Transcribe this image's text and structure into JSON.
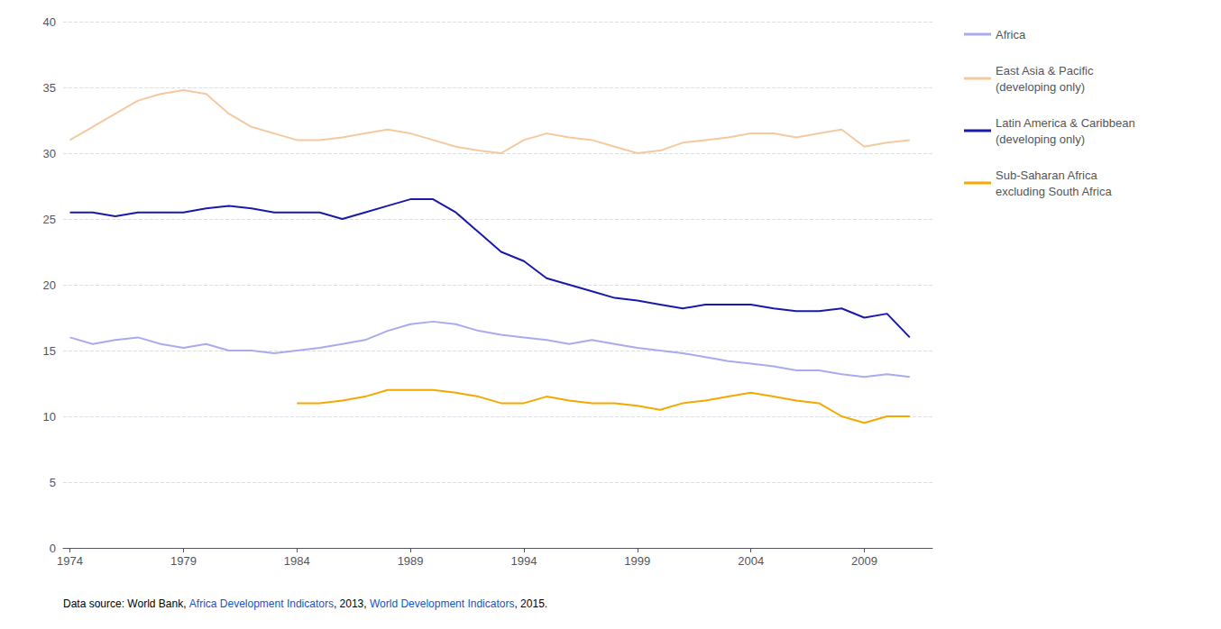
{
  "chart_data": {
    "type": "line",
    "x": [
      1974,
      1975,
      1976,
      1977,
      1978,
      1979,
      1980,
      1981,
      1982,
      1983,
      1984,
      1985,
      1986,
      1987,
      1988,
      1989,
      1990,
      1991,
      1992,
      1993,
      1994,
      1995,
      1996,
      1997,
      1998,
      1999,
      2000,
      2001,
      2002,
      2003,
      2004,
      2005,
      2006,
      2007,
      2008,
      2009,
      2010,
      2011
    ],
    "series": [
      {
        "name": "Africa",
        "color": "#aaaaee",
        "values": [
          16.0,
          15.5,
          15.8,
          16.0,
          15.5,
          15.2,
          15.5,
          15.0,
          15.0,
          14.8,
          15.0,
          15.2,
          15.5,
          15.8,
          16.5,
          17.0,
          17.2,
          17.0,
          16.5,
          16.2,
          16.0,
          15.8,
          15.5,
          15.8,
          15.5,
          15.2,
          15.0,
          14.8,
          14.5,
          14.2,
          14.0,
          13.8,
          13.5,
          13.5,
          13.2,
          13.0,
          13.2,
          13.0
        ]
      },
      {
        "name": "East Asia & Pacific\n(developing only)",
        "color": "#f5c9a0",
        "values": [
          31.0,
          32.0,
          33.0,
          34.0,
          34.5,
          34.8,
          34.5,
          33.0,
          32.0,
          31.5,
          31.0,
          31.0,
          31.2,
          31.5,
          31.8,
          31.5,
          31.0,
          30.5,
          30.2,
          30.0,
          31.0,
          31.5,
          31.2,
          31.0,
          30.5,
          30.0,
          30.2,
          30.8,
          31.0,
          31.2,
          31.5,
          31.5,
          31.2,
          31.5,
          31.8,
          30.5,
          30.8,
          31.0
        ]
      },
      {
        "name": "Latin America & Caribbean\n(developing only)",
        "color": "#1a1aaa",
        "values": [
          25.5,
          25.5,
          25.2,
          25.5,
          25.5,
          25.5,
          25.8,
          26.0,
          25.8,
          25.5,
          25.5,
          25.5,
          25.0,
          25.5,
          26.0,
          26.5,
          26.5,
          25.5,
          24.0,
          22.5,
          21.8,
          20.5,
          20.0,
          19.5,
          19.0,
          18.8,
          18.5,
          18.2,
          18.5,
          18.5,
          18.5,
          18.2,
          18.0,
          18.0,
          18.2,
          17.5,
          17.8,
          16.0
        ]
      },
      {
        "name": "Sub-Saharan Africa\nexcluding South Africa",
        "color": "#f5a800",
        "values": [
          null,
          null,
          null,
          null,
          null,
          null,
          null,
          null,
          null,
          null,
          11.0,
          11.0,
          11.2,
          11.5,
          12.0,
          12.0,
          12.0,
          11.8,
          11.5,
          11.0,
          11.0,
          11.5,
          11.2,
          11.0,
          11.0,
          10.8,
          10.5,
          11.0,
          11.2,
          11.5,
          11.8,
          11.5,
          11.2,
          11.0,
          10.0,
          9.5,
          10.0,
          10.0
        ]
      }
    ],
    "xlim": [
      1973.7,
      2012
    ],
    "xticks": [
      1974,
      1979,
      1984,
      1989,
      1994,
      1999,
      2004,
      2009
    ],
    "ylim": [
      0,
      40
    ],
    "yticks": [
      0,
      5,
      10,
      15,
      20,
      25,
      30,
      35,
      40
    ],
    "grid": true,
    "legend": "right",
    "annotations": [
      {
        "text": "Data source: World Bank, ",
        "color": "#000000"
      },
      {
        "text": "Africa Development Indicators",
        "color": "#1155cc"
      },
      {
        "text": ", 2013, ",
        "color": "#000000"
      },
      {
        "text": "World Development Indicators",
        "color": "#1155cc"
      },
      {
        "text": ", 2015.",
        "color": "#000000"
      }
    ]
  }
}
